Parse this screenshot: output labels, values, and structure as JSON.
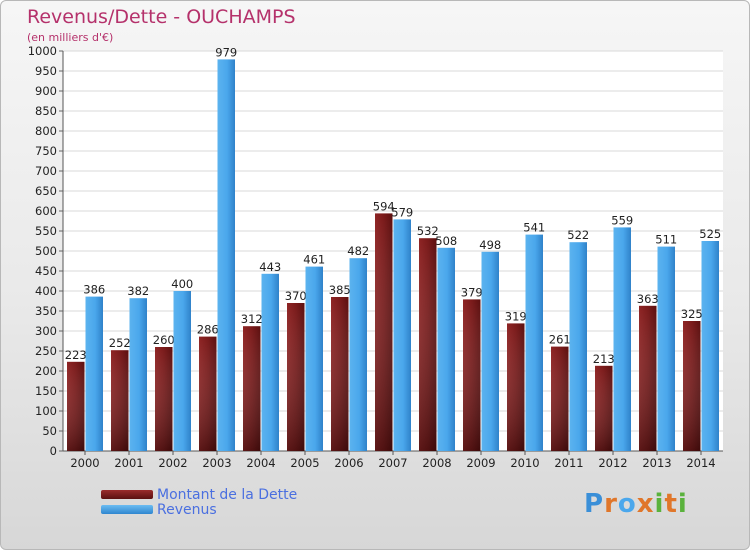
{
  "title": "Revenus/Dette - OUCHAMPS",
  "subtitle": "(en milliers d'€)",
  "colors": {
    "debt": "#7a1e1e",
    "revenue": "#4aa7ec",
    "title": "#b5316b",
    "legend_text": "#4a6fe0"
  },
  "logo": {
    "text": "Proxiti"
  },
  "chart_data": {
    "type": "bar",
    "categories": [
      "2000",
      "2001",
      "2002",
      "2003",
      "2004",
      "2005",
      "2006",
      "2007",
      "2008",
      "2009",
      "2010",
      "2011",
      "2012",
      "2013",
      "2014"
    ],
    "series": [
      {
        "name": "Montant de la Dette",
        "values": [
          223,
          252,
          260,
          286,
          312,
          370,
          385,
          594,
          532,
          379,
          319,
          261,
          213,
          363,
          325
        ]
      },
      {
        "name": "Revenus",
        "values": [
          386,
          382,
          400,
          979,
          443,
          461,
          482,
          579,
          508,
          498,
          541,
          522,
          559,
          511,
          525
        ]
      }
    ],
    "ylim": [
      0,
      1000
    ],
    "yticks": [
      0,
      50,
      100,
      150,
      200,
      250,
      300,
      350,
      400,
      450,
      500,
      550,
      600,
      650,
      700,
      750,
      800,
      850,
      900,
      950,
      1000
    ],
    "grid": true,
    "legend_position": "bottom-left"
  }
}
